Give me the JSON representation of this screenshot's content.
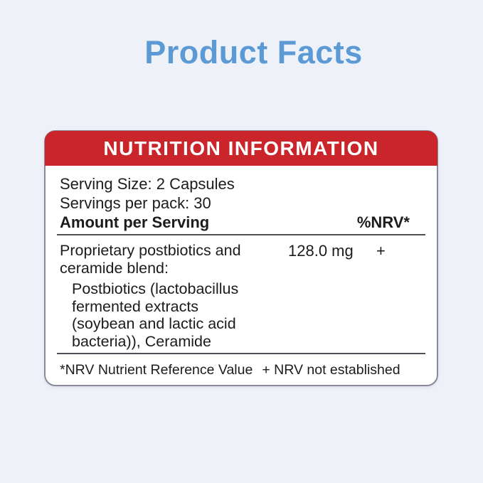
{
  "page": {
    "title": "Product Facts"
  },
  "colors": {
    "background": "#eef2f8",
    "title_blue": "#5b9ad5",
    "header_red": "#c9252b",
    "header_text": "#ffffff",
    "body_text": "#1c1c1c",
    "card_border": "#8a8a9c",
    "divider": "#4f4f55"
  },
  "label": {
    "header_title": "NUTRITION INFORMATION",
    "serving_size": "Serving Size: 2 Capsules",
    "servings_per_pack": "Servings per pack: 30",
    "amount_header": "Amount per Serving",
    "nrv_header": "%NRV*",
    "blend": {
      "name_lines": [
        "Proprietary postbiotics and",
        "ceramide blend:"
      ],
      "name_full": "Proprietary postbiotics and ceramide blend:",
      "amount": "128.0 mg",
      "nrv": "+",
      "ingredient_lines": [
        "Postbiotics (lactobacillus",
        "fermented extracts",
        "(soybean and lactic acid",
        "bacteria)), Ceramide"
      ],
      "ingredients_full": "Postbiotics (lactobacillus fermented extracts (soybean and lactic acid bacteria)), Ceramide"
    },
    "footnotes": {
      "nrv_definition": "*NRV Nutrient Reference Value",
      "nrv_not_established": "+ NRV not established"
    }
  }
}
